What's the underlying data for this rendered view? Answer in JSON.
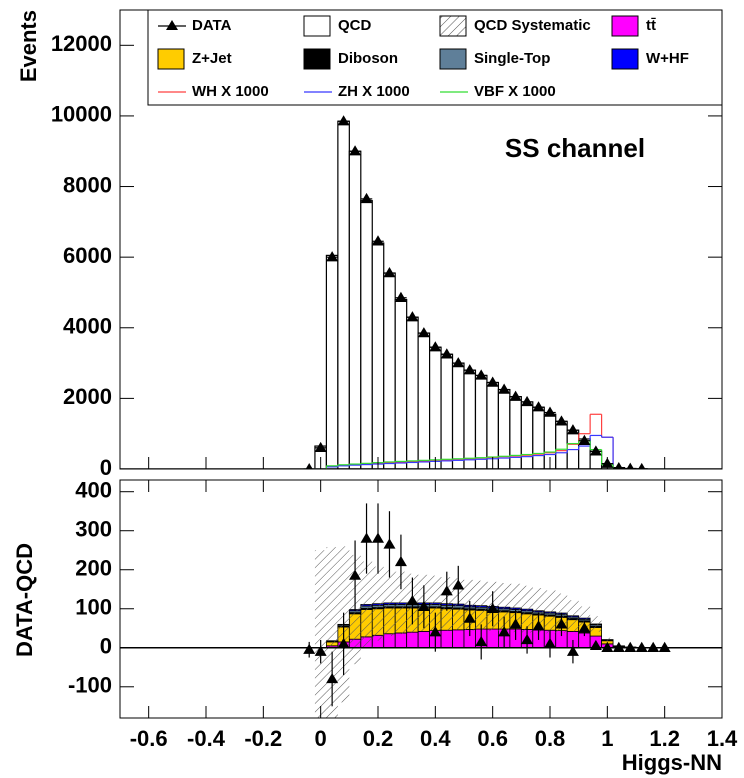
{
  "chart_data": [
    {
      "type": "histogram",
      "y_label": "Events",
      "annotation": "SS channel",
      "bins": [
        -0.06,
        -0.02,
        0.02,
        0.06,
        0.1,
        0.14,
        0.18,
        0.22,
        0.26,
        0.3,
        0.34,
        0.38,
        0.42,
        0.46,
        0.5,
        0.54,
        0.58,
        0.62,
        0.66,
        0.7,
        0.74,
        0.78,
        0.82,
        0.86,
        0.9,
        0.94,
        0.98,
        1.02,
        1.06,
        1.1,
        1.14,
        1.18,
        1.22
      ],
      "xlim": [
        -0.7,
        1.4
      ],
      "ylim": [
        0,
        13000
      ],
      "yticks": [
        0,
        2000,
        4000,
        6000,
        8000,
        10000,
        12000
      ],
      "background": {
        "name": "QCD",
        "color": "#ffffff",
        "values": [
          0,
          650,
          6050,
          9850,
          9000,
          7600,
          6400,
          5550,
          4800,
          4300,
          3850,
          3450,
          3250,
          3000,
          2800,
          2650,
          2450,
          2250,
          2050,
          1900,
          1750,
          1550,
          1350,
          1100,
          850,
          500,
          150,
          40,
          15,
          5,
          0,
          0
        ]
      },
      "data": {
        "name": "DATA",
        "color": "#000000",
        "values": [
          0,
          600,
          6000,
          9850,
          9000,
          7650,
          6450,
          5550,
          4850,
          4300,
          3850,
          3450,
          3250,
          3000,
          2800,
          2650,
          2450,
          2250,
          2050,
          1900,
          1750,
          1600,
          1350,
          1100,
          800,
          500,
          150,
          30,
          10,
          5,
          null,
          null
        ]
      },
      "signals": [
        {
          "name": "WH X 1000",
          "color": "#ff4040",
          "values": [
            0,
            0,
            80,
            110,
            130,
            150,
            170,
            185,
            200,
            215,
            230,
            245,
            260,
            275,
            290,
            310,
            330,
            350,
            370,
            390,
            420,
            460,
            520,
            700,
            1000,
            1550,
            900,
            0,
            0,
            0,
            0,
            0
          ]
        },
        {
          "name": "ZH X 1000",
          "color": "#3838ff",
          "values": [
            0,
            0,
            60,
            90,
            110,
            125,
            140,
            155,
            170,
            185,
            200,
            215,
            230,
            245,
            260,
            275,
            290,
            310,
            330,
            350,
            380,
            410,
            460,
            550,
            650,
            950,
            900,
            0,
            0,
            0,
            0,
            0
          ]
        },
        {
          "name": "VBF X 1000",
          "color": "#33dd33",
          "values": [
            0,
            0,
            90,
            120,
            140,
            160,
            180,
            200,
            215,
            230,
            245,
            260,
            275,
            290,
            305,
            320,
            340,
            360,
            385,
            410,
            440,
            480,
            560,
            720,
            800,
            550,
            120,
            0,
            0,
            0,
            0,
            0
          ]
        }
      ]
    },
    {
      "type": "stacked-histogram",
      "y_label": "DATA-QCD",
      "x_label": "Higgs-NN",
      "bins": [
        -0.06,
        -0.02,
        0.02,
        0.06,
        0.1,
        0.14,
        0.18,
        0.22,
        0.26,
        0.3,
        0.34,
        0.38,
        0.42,
        0.46,
        0.5,
        0.54,
        0.58,
        0.62,
        0.66,
        0.7,
        0.74,
        0.78,
        0.82,
        0.86,
        0.9,
        0.94,
        0.98,
        1.02,
        1.06,
        1.1,
        1.14,
        1.18,
        1.22
      ],
      "xlim": [
        -0.7,
        1.4
      ],
      "xticks": [
        -0.6,
        -0.4,
        -0.2,
        0,
        0.2,
        0.4,
        0.6,
        0.8,
        1,
        1.2,
        1.4
      ],
      "ylim": [
        -180,
        430
      ],
      "yticks": [
        -100,
        0,
        100,
        200,
        300,
        400
      ],
      "series": [
        {
          "name": "tt̄",
          "color": "#ff00ff",
          "values": [
            0,
            0,
            5,
            15,
            22,
            28,
            32,
            36,
            38,
            40,
            42,
            44,
            45,
            46,
            47,
            48,
            48,
            48,
            48,
            47,
            46,
            45,
            44,
            42,
            38,
            30,
            10,
            3,
            1,
            0,
            0,
            0
          ]
        },
        {
          "name": "Z+Jet",
          "color": "#ffcc00",
          "values": [
            0,
            0,
            10,
            38,
            65,
            70,
            68,
            66,
            64,
            62,
            60,
            58,
            55,
            53,
            50,
            48,
            46,
            44,
            42,
            40,
            38,
            36,
            34,
            30,
            28,
            22,
            8,
            2,
            1,
            0,
            0,
            0
          ]
        },
        {
          "name": "Diboson",
          "color": "#000000",
          "values": [
            0,
            0,
            1,
            2,
            3,
            3,
            3,
            3,
            3,
            3,
            3,
            3,
            3,
            3,
            3,
            3,
            3,
            3,
            3,
            3,
            3,
            3,
            3,
            3,
            3,
            3,
            1,
            0,
            0,
            0,
            0,
            0
          ]
        },
        {
          "name": "Single-Top",
          "color": "#5f7f99",
          "values": [
            0,
            0,
            1,
            3,
            5,
            6,
            6,
            6,
            6,
            6,
            6,
            6,
            6,
            6,
            5,
            5,
            5,
            5,
            5,
            5,
            5,
            5,
            5,
            4,
            4,
            4,
            1,
            0,
            0,
            0,
            0,
            0
          ]
        },
        {
          "name": "W+HF",
          "color": "#0000ff",
          "values": [
            0,
            0,
            1,
            2,
            3,
            4,
            4,
            4,
            4,
            4,
            4,
            4,
            4,
            4,
            4,
            4,
            4,
            4,
            4,
            4,
            3,
            3,
            3,
            3,
            3,
            2,
            1,
            0,
            0,
            0,
            0,
            0
          ]
        }
      ],
      "systematic": {
        "name": "QCD Systematic",
        "errors": [
          0,
          250,
          240,
          200,
          140,
          110,
          95,
          85,
          80,
          75,
          72,
          70,
          68,
          66,
          65,
          64,
          63,
          62,
          62,
          60,
          58,
          55,
          50,
          40,
          30,
          20,
          5,
          0,
          0,
          0,
          0,
          0
        ]
      },
      "data": {
        "color": "#000000",
        "values": [
          -5,
          -10,
          -80,
          10,
          185,
          280,
          280,
          265,
          220,
          120,
          105,
          40,
          145,
          160,
          75,
          15,
          100,
          40,
          60,
          20,
          55,
          10,
          60,
          -10,
          50,
          5,
          0,
          0,
          0,
          0,
          0,
          0
        ],
        "errors": [
          20,
          30,
          70,
          80,
          90,
          90,
          90,
          85,
          70,
          60,
          55,
          50,
          50,
          50,
          45,
          45,
          45,
          40,
          40,
          35,
          35,
          35,
          30,
          30,
          20,
          10,
          5,
          3,
          3,
          3,
          3,
          3
        ]
      }
    }
  ]
}
